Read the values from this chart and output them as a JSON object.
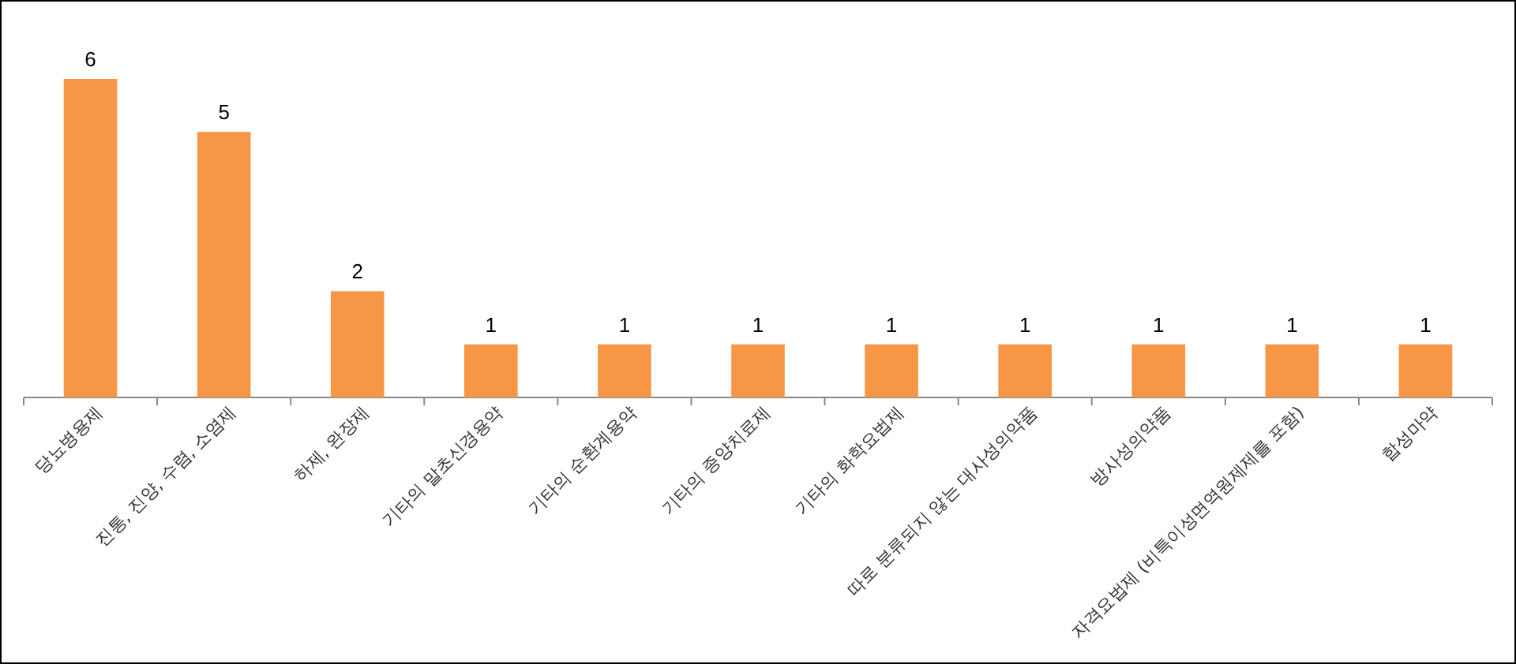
{
  "chart_data": {
    "type": "bar",
    "categories": [
      "당뇨병용제",
      "진통, 진양, 수렴, 소염제",
      "하제, 완장제",
      "기타의 말초신경용약",
      "기타의 순환계용약",
      "기타의 종양치료제",
      "기타의 화학요법제",
      "따로 분류되지 않는 대사성의약품",
      "방사성의약품",
      "자격요법제 (비특이성면역원제제를 포함)",
      "합성마약"
    ],
    "values": [
      6,
      5,
      2,
      1,
      1,
      1,
      1,
      1,
      1,
      1,
      1
    ],
    "color": "#f79646",
    "data_labels": true
  }
}
